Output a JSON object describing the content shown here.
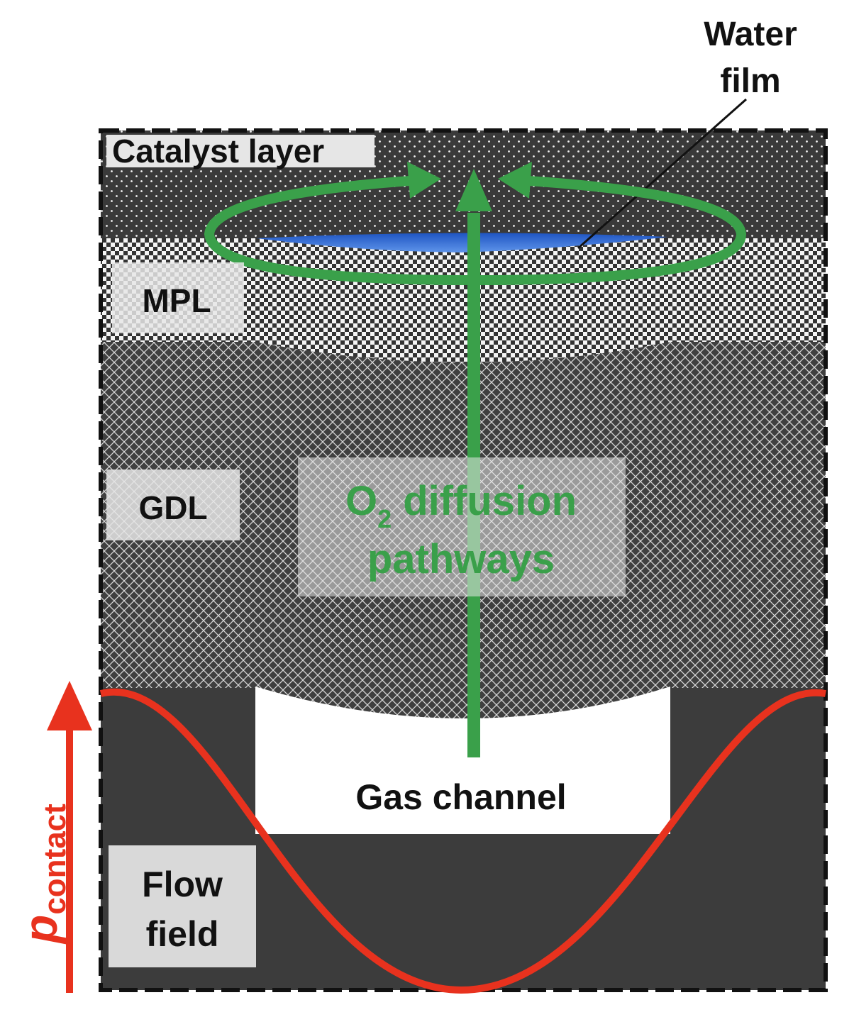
{
  "labels": {
    "catalyst_layer": "Catalyst layer",
    "mpl": "MPL",
    "gdl": "GDL",
    "flow_field_line1": "Flow",
    "flow_field_line2": "field",
    "gas_channel": "Gas channel",
    "water_film_line1": "Water",
    "water_film_line2": "film",
    "o2_prefix": "O",
    "o2_subscript": "2",
    "o2_line1_rest": " diffusion",
    "o2_line2": "pathways",
    "p_symbol": "p",
    "p_subscript": "contact"
  },
  "colors": {
    "catalyst_layer": "#3a3a3a",
    "gdl": "#444444",
    "mpl": "#6a6a6a",
    "flow_field": "#3c3c3c",
    "gas_channel": "#ffffff",
    "water_film": "#2f6fd6",
    "o2_pathway": "#3aa04a",
    "contact_pressure": "#e8321e",
    "label_box": "#e6e6e6",
    "text": "#111111"
  }
}
